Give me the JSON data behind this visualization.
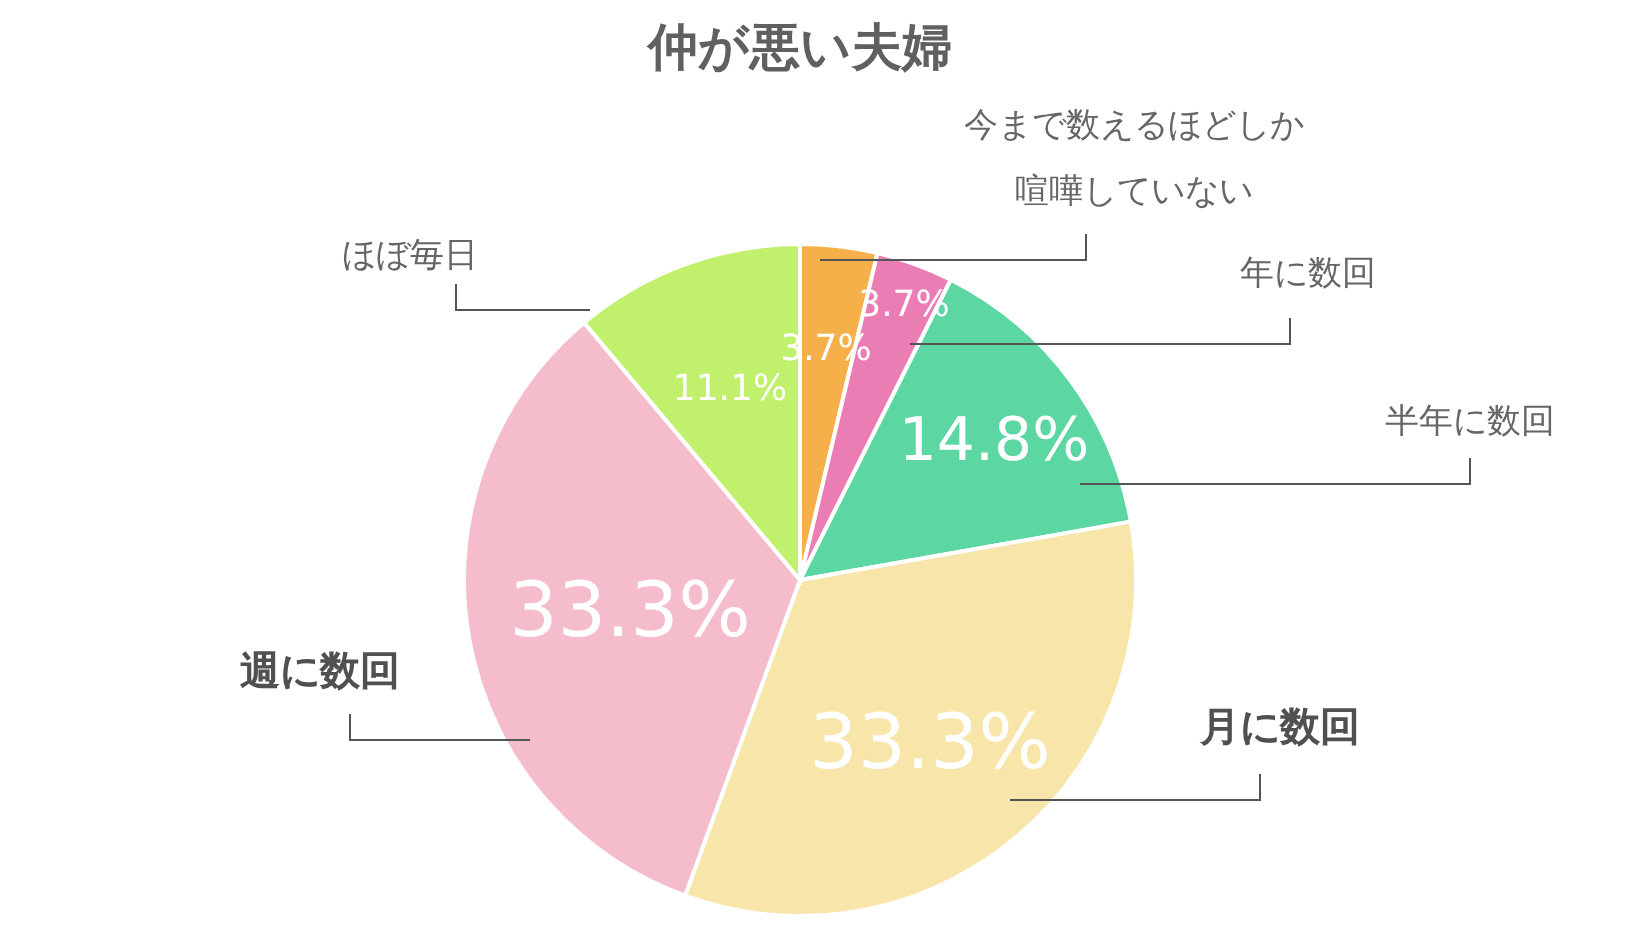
{
  "chart_data": {
    "type": "pie",
    "title": "仲が悪い夫婦",
    "categories": [
      "今まで数えるほどしか喧嘩していない",
      "年に数回",
      "半年に数回",
      "月に数回",
      "週に数回",
      "ほぼ毎日"
    ],
    "values": [
      3.7,
      3.7,
      14.8,
      33.3,
      33.3,
      11.1
    ],
    "colors": [
      "#f5b04a",
      "#e97db4",
      "#5cd6a2",
      "#f7e5a9",
      "#f5bdcc",
      "#c1f06c"
    ],
    "value_labels": [
      "3.7%",
      "3.7%",
      "14.8%",
      "33.3%",
      "33.3%",
      "11.1%"
    ]
  }
}
